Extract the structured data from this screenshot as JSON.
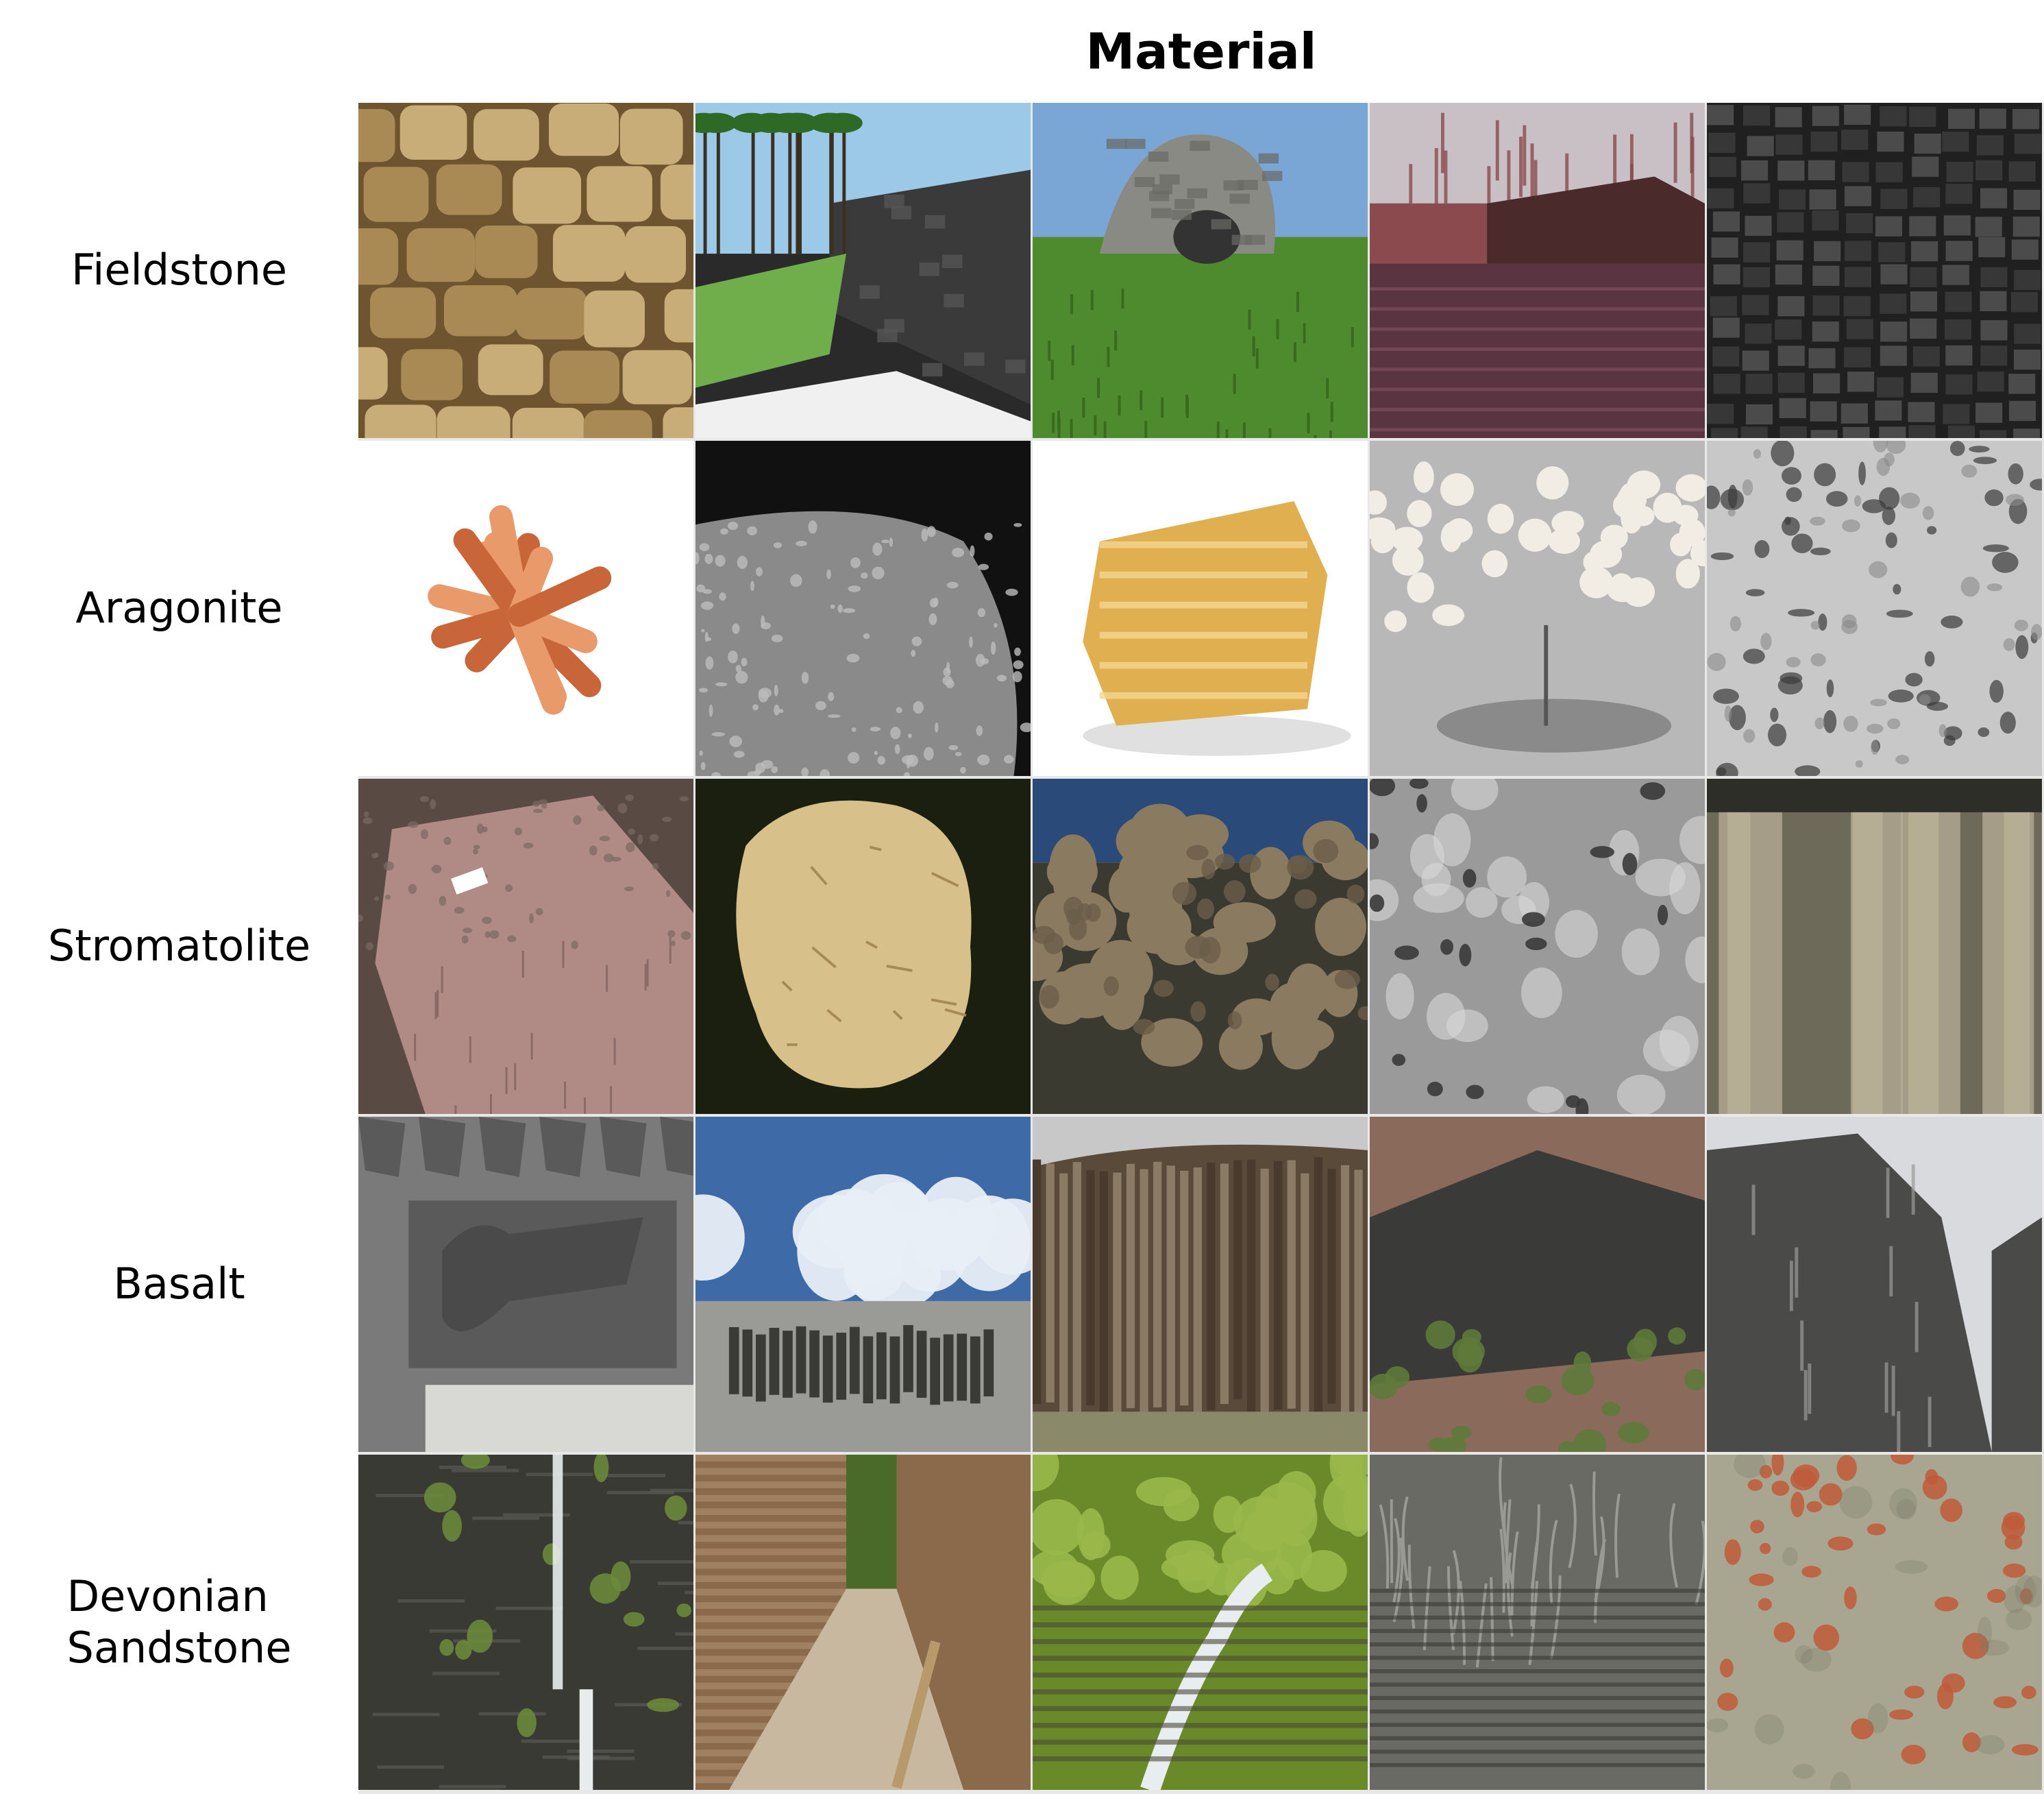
{
  "header": {
    "title": "Material"
  },
  "rows": [
    {
      "label_lines": [
        "Fieldstone"
      ]
    },
    {
      "label_lines": [
        "Aragonite"
      ]
    },
    {
      "label_lines": [
        "Stromatolite"
      ]
    },
    {
      "label_lines": [
        "Basalt"
      ]
    },
    {
      "label_lines": [
        "Devonian",
        "Sandstone"
      ]
    }
  ],
  "cells": [
    [
      {
        "scene": "stone-wall",
        "colors": [
          "#a98a55",
          "#c9ad78",
          "#6e5530"
        ]
      },
      {
        "scene": "palm-wall",
        "colors": [
          "#3a3a3a",
          "#6fae4a",
          "#9cc9e8"
        ]
      },
      {
        "scene": "stone-ruin",
        "colors": [
          "#8a8a84",
          "#4e8a2e",
          "#7aa6d6"
        ]
      },
      {
        "scene": "lake-house",
        "colors": [
          "#5a3440",
          "#8a4a4e",
          "#c8c0c4"
        ]
      },
      {
        "scene": "dark-cracks",
        "colors": [
          "#202020",
          "#3a3a3a",
          "#505050"
        ]
      }
    ],
    [
      {
        "scene": "crystal-orange",
        "colors": [
          "#ffffff",
          "#c8663a",
          "#e89a6a"
        ]
      },
      {
        "scene": "gray-crystal-dark",
        "colors": [
          "#111111",
          "#8a8a8a",
          "#bcbcbc"
        ]
      },
      {
        "scene": "crystal-yellow",
        "colors": [
          "#ffffff",
          "#e0b050",
          "#f4d690"
        ]
      },
      {
        "scene": "white-coral",
        "colors": [
          "#b8b8b8",
          "#f2ede4",
          "#6a6a6a"
        ]
      },
      {
        "scene": "porous-gray",
        "colors": [
          "#c8c8c8",
          "#3a3a3a",
          "#8a8a8a"
        ]
      }
    ],
    [
      {
        "scene": "pink-boulder",
        "colors": [
          "#b08a84",
          "#8a6a66",
          "#5a4a44"
        ]
      },
      {
        "scene": "beige-fossil",
        "colors": [
          "#1a1f10",
          "#d8c08a",
          "#a88a58"
        ]
      },
      {
        "scene": "rocky-mound",
        "colors": [
          "#8a7a60",
          "#3a3a30",
          "#2a4a7a"
        ]
      },
      {
        "scene": "gray-pitted",
        "colors": [
          "#9a9a9a",
          "#3a3a3a",
          "#d8d8d8"
        ]
      },
      {
        "scene": "cliff-beige",
        "colors": [
          "#bcb49a",
          "#6e6a5a",
          "#2e2e28"
        ]
      }
    ],
    [
      {
        "scene": "carved-relief",
        "colors": [
          "#5a5a5a",
          "#7a7a7a",
          "#d8d8d4"
        ]
      },
      {
        "scene": "columns-sky",
        "colors": [
          "#3e6aa8",
          "#e8eef6",
          "#3a3a36"
        ]
      },
      {
        "scene": "columnar-basalt",
        "colors": [
          "#5a4a3a",
          "#8a7a66",
          "#c8c8c8"
        ]
      },
      {
        "scene": "forest-slope",
        "colors": [
          "#3a3a38",
          "#5e7a3a",
          "#8a6a5a"
        ]
      },
      {
        "scene": "gorge-cliff",
        "colors": [
          "#4a4a48",
          "#9a9a98",
          "#d8dade"
        ]
      }
    ],
    [
      {
        "scene": "waterfall-gorge",
        "colors": [
          "#3a3a34",
          "#6a8a3a",
          "#e8ecec"
        ]
      },
      {
        "scene": "canyon-path",
        "colors": [
          "#8a6a4a",
          "#c8b8a0",
          "#4a6a2a"
        ]
      },
      {
        "scene": "creek-forest",
        "colors": [
          "#6a8a2a",
          "#9ab84a",
          "#e8eef0"
        ]
      },
      {
        "scene": "shale-roots",
        "colors": [
          "#6a6a64",
          "#3a3a36",
          "#9a9a94"
        ]
      },
      {
        "scene": "red-flakes",
        "colors": [
          "#a8a690",
          "#c05a3a",
          "#7a7a6a"
        ]
      }
    ]
  ]
}
